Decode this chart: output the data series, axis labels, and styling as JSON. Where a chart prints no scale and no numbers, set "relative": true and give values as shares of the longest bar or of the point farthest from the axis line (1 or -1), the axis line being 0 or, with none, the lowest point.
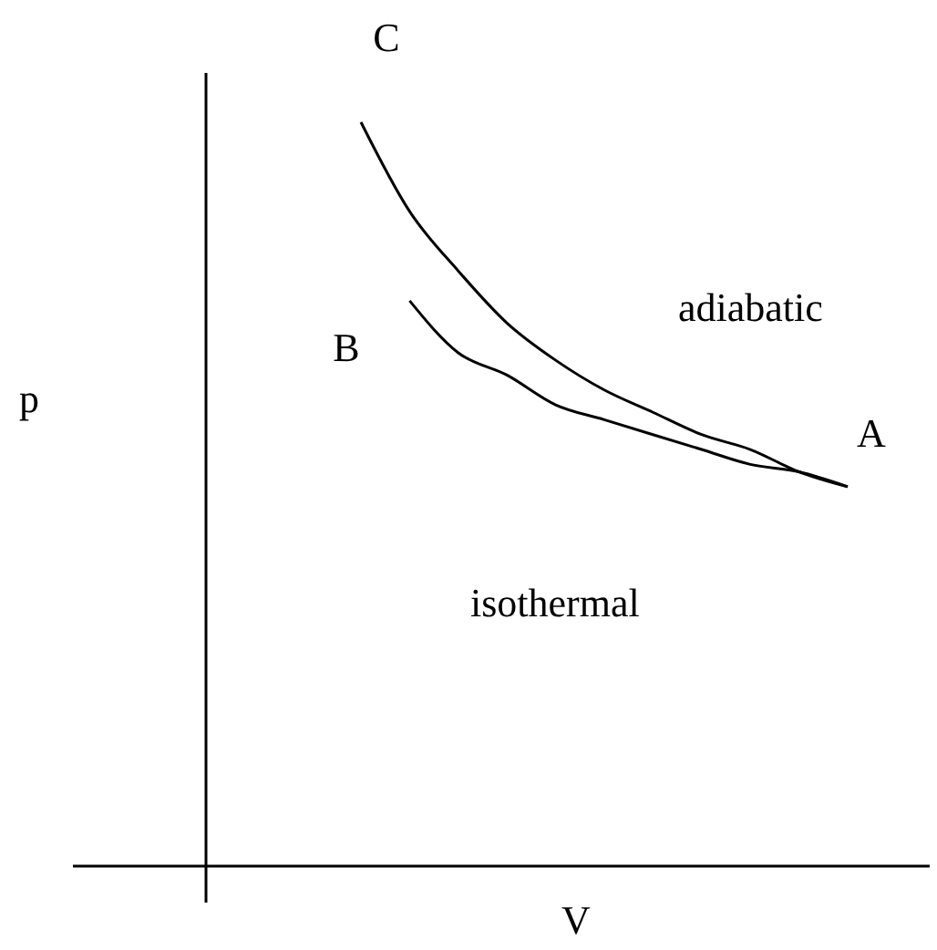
{
  "chart_data": {
    "type": "line",
    "relative": true,
    "xlabel": "V",
    "categories": [
      null,
      null,
      null,
      null,
      null,
      null,
      null,
      null,
      null,
      null,
      null
    ],
    "series": [
      {
        "color": "#000000",
        "values": [
          1.0,
          0.88,
          0.8,
          0.73,
          0.68,
          0.64,
          0.61,
          0.58,
          0.56,
          0.53,
          0.51
        ]
      },
      {
        "color": "#000000",
        "values": [
          null,
          0.76,
          0.69,
          0.66,
          0.62,
          0.6,
          0.58,
          0.56,
          0.54,
          0.53,
          0.51
        ]
      }
    ],
    "annotations": [
      "C",
      "B",
      "A",
      "adiabatic",
      "isothermal",
      "p"
    ],
    "marker": "none",
    "line_style": "solid",
    "legend": false,
    "grid": false
  }
}
